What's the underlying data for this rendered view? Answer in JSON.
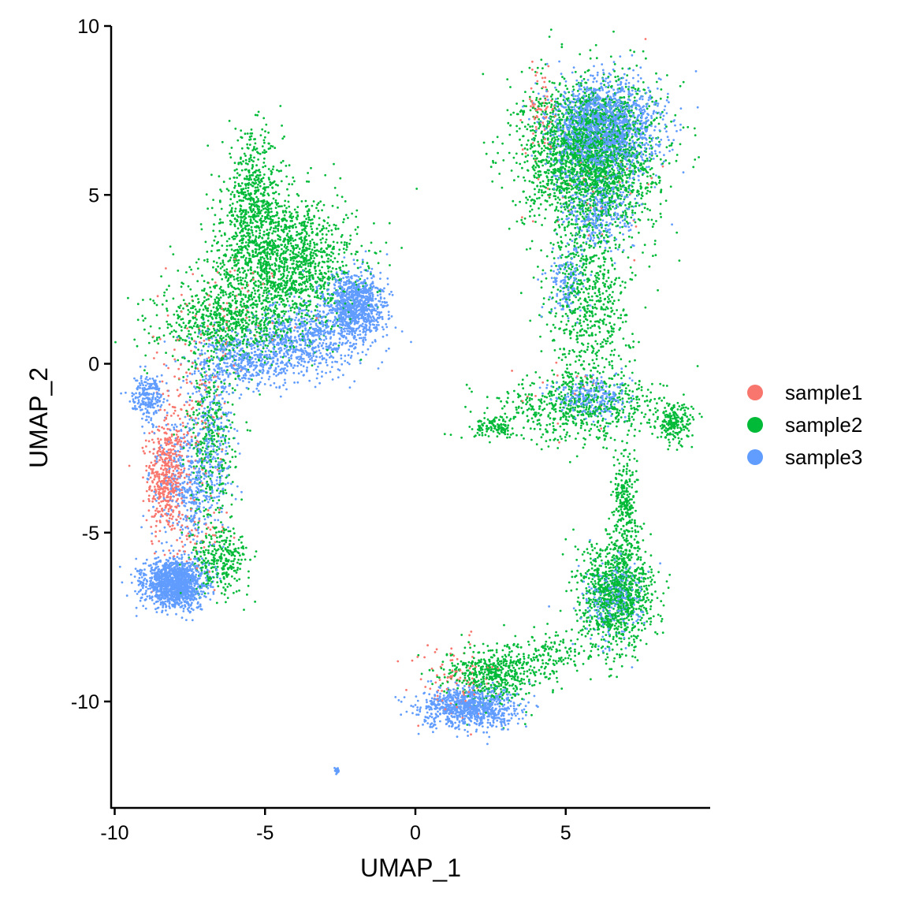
{
  "chart_data": {
    "type": "scatter",
    "xlabel": "UMAP_1",
    "ylabel": "UMAP_2",
    "xlim": [
      -10.1,
      9.9
    ],
    "ylim": [
      -12.8,
      10
    ],
    "x_ticks": [
      -10,
      -5,
      0,
      5
    ],
    "y_ticks": [
      10,
      5,
      0,
      -5,
      -10
    ],
    "grid": false,
    "legend_position": "right",
    "series": [
      {
        "name": "sample1",
        "color": "#F8766D",
        "clusters": [
          {
            "cx": -8.3,
            "cy": -3.4,
            "sx": 0.3,
            "sy": 0.8,
            "n": 420
          },
          {
            "cx": -7.6,
            "cy": -1.8,
            "sx": 0.6,
            "sy": 1.2,
            "n": 160
          },
          {
            "cx": -6.2,
            "cy": 1.5,
            "sx": 1.0,
            "sy": 0.8,
            "n": 70
          },
          {
            "cx": -7.5,
            "cy": -5.2,
            "sx": 0.6,
            "sy": 0.5,
            "n": 60
          },
          {
            "cx": 4.2,
            "cy": 7.5,
            "sx": 0.3,
            "sy": 0.6,
            "n": 70
          },
          {
            "cx": 1.2,
            "cy": -9.4,
            "sx": 0.7,
            "sy": 0.6,
            "n": 90
          },
          {
            "cx": 6.0,
            "cy": 5.5,
            "sx": 1.0,
            "sy": 1.2,
            "n": 40
          },
          {
            "cx": 5.5,
            "cy": -1.0,
            "sx": 1.0,
            "sy": 0.6,
            "n": 20
          }
        ]
      },
      {
        "name": "sample2",
        "color": "#00BA38",
        "clusters": [
          {
            "cx": -4.3,
            "cy": 3.0,
            "sx": 1.2,
            "sy": 1.0,
            "n": 1500
          },
          {
            "cx": -5.4,
            "cy": 4.8,
            "sx": 0.5,
            "sy": 1.0,
            "n": 550
          },
          {
            "cx": -6.3,
            "cy": 1.2,
            "sx": 1.1,
            "sy": 0.6,
            "n": 700
          },
          {
            "cx": -6.8,
            "cy": -2.4,
            "sx": 0.4,
            "sy": 1.2,
            "n": 350
          },
          {
            "cx": -6.5,
            "cy": -5.8,
            "sx": 0.5,
            "sy": 0.5,
            "n": 300
          },
          {
            "cx": 5.8,
            "cy": 6.2,
            "sx": 1.1,
            "sy": 1.1,
            "n": 2500
          },
          {
            "cx": 5.8,
            "cy": 2.0,
            "sx": 0.7,
            "sy": 1.5,
            "n": 700
          },
          {
            "cx": 5.5,
            "cy": -1.3,
            "sx": 1.4,
            "sy": 0.5,
            "n": 600
          },
          {
            "cx": 8.6,
            "cy": -1.8,
            "sx": 0.3,
            "sy": 0.3,
            "n": 200
          },
          {
            "cx": 2.7,
            "cy": -1.9,
            "sx": 0.4,
            "sy": 0.15,
            "n": 120
          },
          {
            "cx": 6.7,
            "cy": -6.8,
            "sx": 0.6,
            "sy": 0.8,
            "n": 1100
          },
          {
            "cx": 7.0,
            "cy": -4.2,
            "sx": 0.2,
            "sy": 0.8,
            "n": 250
          },
          {
            "cx": 2.6,
            "cy": -9.2,
            "sx": 0.8,
            "sy": 0.4,
            "n": 500
          },
          {
            "cx": 4.5,
            "cy": -8.6,
            "sx": 0.8,
            "sy": 0.3,
            "n": 150
          }
        ]
      },
      {
        "name": "sample3",
        "color": "#619CFF",
        "clusters": [
          {
            "cx": -8.0,
            "cy": -6.5,
            "sx": 0.5,
            "sy": 0.35,
            "n": 1400
          },
          {
            "cx": -2.0,
            "cy": 1.7,
            "sx": 0.5,
            "sy": 0.5,
            "n": 900
          },
          {
            "cx": -3.5,
            "cy": 0.8,
            "sx": 1.0,
            "sy": 0.5,
            "n": 600
          },
          {
            "cx": -5.5,
            "cy": 0.1,
            "sx": 1.0,
            "sy": 0.4,
            "n": 500
          },
          {
            "cx": -8.9,
            "cy": -1.0,
            "sx": 0.25,
            "sy": 0.3,
            "n": 220
          },
          {
            "cx": -7.5,
            "cy": -3.5,
            "sx": 0.6,
            "sy": 0.9,
            "n": 450
          },
          {
            "cx": -6.8,
            "cy": -1.8,
            "sx": 0.4,
            "sy": 1.0,
            "n": 200
          },
          {
            "cx": 6.3,
            "cy": 7.0,
            "sx": 0.9,
            "sy": 0.7,
            "n": 1700
          },
          {
            "cx": 6.0,
            "cy": 4.5,
            "sx": 0.6,
            "sy": 0.6,
            "n": 350
          },
          {
            "cx": 5.0,
            "cy": 2.5,
            "sx": 0.3,
            "sy": 0.5,
            "n": 150
          },
          {
            "cx": 5.8,
            "cy": -1.0,
            "sx": 0.6,
            "sy": 0.3,
            "n": 250
          },
          {
            "cx": 1.8,
            "cy": -10.2,
            "sx": 0.8,
            "sy": 0.3,
            "n": 900
          },
          {
            "cx": 6.5,
            "cy": -7.0,
            "sx": 0.5,
            "sy": 0.6,
            "n": 250
          },
          {
            "cx": -2.6,
            "cy": -12.05,
            "sx": 0.04,
            "sy": 0.05,
            "n": 20
          }
        ]
      }
    ]
  }
}
